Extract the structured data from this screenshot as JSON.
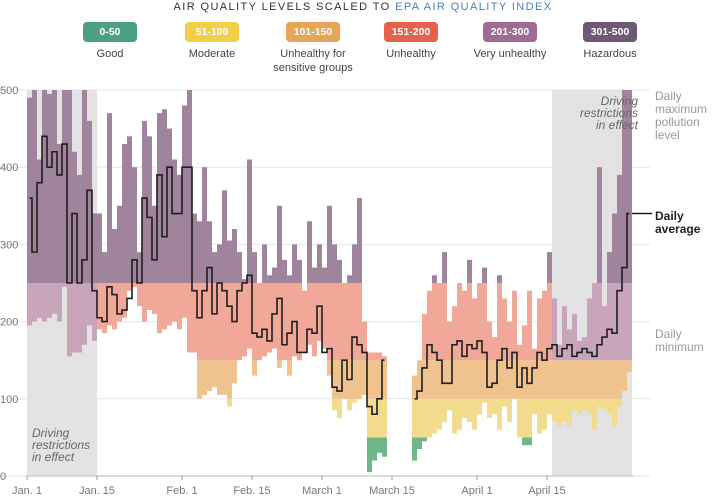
{
  "title_prefix": "AIR QUALITY LEVELS SCALED TO",
  "title_highlight": "EPA AIR QUALITY INDEX",
  "legend": [
    {
      "range": "0-50",
      "label": "Good",
      "color": "#4c9e86"
    },
    {
      "range": "51-100",
      "label": "Moderate",
      "color": "#f1cf48"
    },
    {
      "range": "101-150",
      "label": "Unhealthy for sensitive groups",
      "color": "#e8a558"
    },
    {
      "range": "151-200",
      "label": "Unhealthy",
      "color": "#e2624e"
    },
    {
      "range": "201-300",
      "label": "Very unhealthy",
      "color": "#9e6b92"
    },
    {
      "range": "301-500",
      "label": "Hazardous",
      "color": "#6e5a76"
    }
  ],
  "right_labels": {
    "max_line1": "Daily",
    "max_line2": "maximum",
    "max_line3": "pollution level",
    "avg_line1": "Daily",
    "avg_line2": "average",
    "min_line1": "Daily",
    "min_line2": "minimum"
  },
  "annotations": {
    "left_line1": "Driving",
    "left_line2": "restrictions",
    "left_line3": "in effect",
    "right_line1": "Driving",
    "right_line2": "restrictions",
    "right_line3": "in effect"
  },
  "chart_data": {
    "type": "bar",
    "ylim": [
      0,
      500
    ],
    "yticks": [
      0,
      100,
      200,
      300,
      400,
      500
    ],
    "x_tick_labels": [
      {
        "label": "Jan. 1",
        "day": 0
      },
      {
        "label": "Jan. 15",
        "day": 14
      },
      {
        "label": "Feb. 1",
        "day": 31
      },
      {
        "label": "Feb. 15",
        "day": 45
      },
      {
        "label": "March 1",
        "day": 59
      },
      {
        "label": "March 15",
        "day": 73
      },
      {
        "label": "April 1",
        "day": 90
      },
      {
        "label": "April 15",
        "day": 104
      }
    ],
    "restricted_periods": [
      [
        0,
        13
      ],
      [
        105,
        120
      ]
    ],
    "aqi_bands": [
      {
        "from": 0,
        "to": 50,
        "color": "#6fb68a"
      },
      {
        "from": 50,
        "to": 100,
        "color": "#f3dc8e"
      },
      {
        "from": 100,
        "to": 150,
        "color": "#f0c28e"
      },
      {
        "from": 150,
        "to": 250,
        "color": "#f2a898"
      },
      {
        "from": 250,
        "to": 500,
        "color": "#a0849e"
      }
    ],
    "restricted_band_colors": [
      "#6fb68a",
      "#f3dc8e",
      "#f0c28e",
      "#c8a5bb",
      "#a0849e"
    ],
    "daily": [
      {
        "day": 0,
        "min": 195,
        "max": 490,
        "avg": 360
      },
      {
        "day": 1,
        "min": 200,
        "max": 500,
        "avg": 290
      },
      {
        "day": 2,
        "min": 205,
        "max": 410,
        "avg": 380
      },
      {
        "day": 3,
        "min": 200,
        "max": 500,
        "avg": 440
      },
      {
        "day": 4,
        "min": 205,
        "max": 495,
        "avg": 400
      },
      {
        "day": 5,
        "min": 210,
        "max": 500,
        "avg": 420
      },
      {
        "day": 6,
        "min": 200,
        "max": 430,
        "avg": 390
      },
      {
        "day": 7,
        "min": 245,
        "max": 500,
        "avg": 430
      },
      {
        "day": 8,
        "min": 155,
        "max": 500,
        "avg": 250
      },
      {
        "day": 9,
        "min": 160,
        "max": 420,
        "avg": 340
      },
      {
        "day": 10,
        "min": 160,
        "max": 390,
        "avg": 250
      },
      {
        "day": 11,
        "min": 170,
        "max": 500,
        "avg": 280
      },
      {
        "day": 12,
        "min": 195,
        "max": 460,
        "avg": 370
      },
      {
        "day": 13,
        "min": 175,
        "max": 340,
        "avg": 240
      },
      {
        "day": 14,
        "min": 190,
        "max": 340,
        "avg": 205
      },
      {
        "day": 15,
        "min": 185,
        "max": 290,
        "avg": 200
      },
      {
        "day": 16,
        "min": 195,
        "max": 470,
        "avg": 245
      },
      {
        "day": 17,
        "min": 190,
        "max": 320,
        "avg": 235
      },
      {
        "day": 18,
        "min": 200,
        "max": 350,
        "avg": 210
      },
      {
        "day": 19,
        "min": 205,
        "max": 430,
        "avg": 215
      },
      {
        "day": 20,
        "min": 240,
        "max": 440,
        "avg": 230
      },
      {
        "day": 21,
        "min": 245,
        "max": 400,
        "avg": 280
      },
      {
        "day": 22,
        "min": 220,
        "max": 290,
        "avg": 250
      },
      {
        "day": 23,
        "min": 200,
        "max": 460,
        "avg": 360
      },
      {
        "day": 24,
        "min": 215,
        "max": 440,
        "avg": 335
      },
      {
        "day": 25,
        "min": 210,
        "max": 350,
        "avg": 280
      },
      {
        "day": 26,
        "min": 185,
        "max": 470,
        "avg": 390
      },
      {
        "day": 27,
        "min": 190,
        "max": 475,
        "avg": 310
      },
      {
        "day": 28,
        "min": 195,
        "max": 450,
        "avg": 400
      },
      {
        "day": 29,
        "min": 200,
        "max": 410,
        "avg": 340
      },
      {
        "day": 30,
        "min": 190,
        "max": 390,
        "avg": 340
      },
      {
        "day": 31,
        "min": 205,
        "max": 480,
        "avg": 400
      },
      {
        "day": 32,
        "min": 160,
        "max": 500,
        "avg": 400
      },
      {
        "day": 33,
        "min": 160,
        "max": 340,
        "avg": 240
      },
      {
        "day": 34,
        "min": 100,
        "max": 330,
        "avg": 205
      },
      {
        "day": 35,
        "min": 105,
        "max": 400,
        "avg": 240
      },
      {
        "day": 36,
        "min": 110,
        "max": 330,
        "avg": 270
      },
      {
        "day": 37,
        "min": 115,
        "max": 290,
        "avg": 210
      },
      {
        "day": 38,
        "min": 105,
        "max": 300,
        "avg": 250
      },
      {
        "day": 39,
        "min": 105,
        "max": 370,
        "avg": 240
      },
      {
        "day": 40,
        "min": 90,
        "max": 305,
        "avg": 220
      },
      {
        "day": 41,
        "min": 120,
        "max": 320,
        "avg": 200
      },
      {
        "day": 42,
        "min": 150,
        "max": 290,
        "avg": 240
      },
      {
        "day": 43,
        "min": 155,
        "max": 255,
        "avg": 250
      },
      {
        "day": 44,
        "min": 165,
        "max": 410,
        "avg": 260
      },
      {
        "day": 45,
        "min": 130,
        "max": 290,
        "avg": 185
      },
      {
        "day": 46,
        "min": 150,
        "max": 250,
        "avg": 180
      },
      {
        "day": 47,
        "min": 155,
        "max": 300,
        "avg": 190
      },
      {
        "day": 48,
        "min": 160,
        "max": 260,
        "avg": 175
      },
      {
        "day": 49,
        "min": 165,
        "max": 270,
        "avg": 210
      },
      {
        "day": 50,
        "min": 140,
        "max": 350,
        "avg": 230
      },
      {
        "day": 51,
        "min": 150,
        "max": 280,
        "avg": 170
      },
      {
        "day": 52,
        "min": 130,
        "max": 260,
        "avg": 185
      },
      {
        "day": 53,
        "min": 155,
        "max": 300,
        "avg": 200
      },
      {
        "day": 54,
        "min": 150,
        "max": 280,
        "avg": 160
      },
      {
        "day": 55,
        "min": 160,
        "max": 240,
        "avg": 160
      },
      {
        "day": 56,
        "min": 170,
        "max": 330,
        "avg": 190
      },
      {
        "day": 57,
        "min": 155,
        "max": 270,
        "avg": 185
      },
      {
        "day": 58,
        "min": 175,
        "max": 300,
        "avg": 220
      },
      {
        "day": 59,
        "min": 165,
        "max": 270,
        "avg": 160
      },
      {
        "day": 60,
        "min": 130,
        "max": 350,
        "avg": 165
      },
      {
        "day": 61,
        "min": 85,
        "max": 300,
        "avg": 115
      },
      {
        "day": 62,
        "min": 75,
        "max": 280,
        "avg": 110
      },
      {
        "day": 63,
        "min": 100,
        "max": 250,
        "avg": 150
      },
      {
        "day": 64,
        "min": 85,
        "max": 260,
        "avg": 125
      },
      {
        "day": 65,
        "min": 95,
        "max": 300,
        "avg": 180
      },
      {
        "day": 66,
        "min": 100,
        "max": 360,
        "avg": 170
      },
      {
        "day": 67,
        "min": 105,
        "max": 200,
        "avg": 160
      },
      {
        "day": 68,
        "min": 5,
        "max": 160,
        "avg": 90
      },
      {
        "day": 69,
        "min": 20,
        "max": 160,
        "avg": 80
      },
      {
        "day": 70,
        "min": 30,
        "max": 160,
        "avg": 100
      },
      {
        "day": 71,
        "min": 25,
        "max": 155,
        "avg": 150
      },
      {
        "day": 77,
        "min": 20,
        "max": 130,
        "avg": 100
      },
      {
        "day": 78,
        "min": 35,
        "max": 150,
        "avg": 110
      },
      {
        "day": 79,
        "min": 45,
        "max": 210,
        "avg": 140
      },
      {
        "day": 80,
        "min": 50,
        "max": 240,
        "avg": 170
      },
      {
        "day": 81,
        "min": 55,
        "max": 260,
        "avg": 160
      },
      {
        "day": 82,
        "min": 60,
        "max": 250,
        "avg": 150
      },
      {
        "day": 83,
        "min": 70,
        "max": 290,
        "avg": 120
      },
      {
        "day": 84,
        "min": 85,
        "max": 200,
        "avg": 120
      },
      {
        "day": 85,
        "min": 55,
        "max": 220,
        "avg": 170
      },
      {
        "day": 86,
        "min": 60,
        "max": 250,
        "avg": 175
      },
      {
        "day": 87,
        "min": 75,
        "max": 240,
        "avg": 155
      },
      {
        "day": 88,
        "min": 70,
        "max": 280,
        "avg": 170
      },
      {
        "day": 89,
        "min": 60,
        "max": 230,
        "avg": 165
      },
      {
        "day": 90,
        "min": 80,
        "max": 250,
        "avg": 175
      },
      {
        "day": 91,
        "min": 95,
        "max": 270,
        "avg": 160
      },
      {
        "day": 92,
        "min": 75,
        "max": 200,
        "avg": 115
      },
      {
        "day": 93,
        "min": 80,
        "max": 180,
        "avg": 120
      },
      {
        "day": 94,
        "min": 60,
        "max": 260,
        "avg": 150
      },
      {
        "day": 95,
        "min": 90,
        "max": 230,
        "avg": 165
      },
      {
        "day": 96,
        "min": 70,
        "max": 200,
        "avg": 140
      },
      {
        "day": 97,
        "min": 100,
        "max": 240,
        "avg": 160
      },
      {
        "day": 98,
        "min": 50,
        "max": 170,
        "avg": 115
      },
      {
        "day": 99,
        "min": 40,
        "max": 195,
        "avg": 140
      },
      {
        "day": 100,
        "min": 40,
        "max": 240,
        "avg": 120
      },
      {
        "day": 101,
        "min": 80,
        "max": 165,
        "avg": 140
      },
      {
        "day": 102,
        "min": 55,
        "max": 230,
        "avg": 160
      },
      {
        "day": 103,
        "min": 60,
        "max": 240,
        "avg": 150
      },
      {
        "day": 104,
        "min": 80,
        "max": 290,
        "avg": 165
      },
      {
        "day": 105,
        "min": 70,
        "max": 230,
        "avg": 170
      },
      {
        "day": 106,
        "min": 65,
        "max": 170,
        "avg": 155
      },
      {
        "day": 107,
        "min": 70,
        "max": 220,
        "avg": 165
      },
      {
        "day": 108,
        "min": 65,
        "max": 190,
        "avg": 170
      },
      {
        "day": 109,
        "min": 85,
        "max": 210,
        "avg": 155
      },
      {
        "day": 110,
        "min": 80,
        "max": 175,
        "avg": 160
      },
      {
        "day": 111,
        "min": 85,
        "max": 180,
        "avg": 165
      },
      {
        "day": 112,
        "min": 80,
        "max": 230,
        "avg": 160
      },
      {
        "day": 113,
        "min": 60,
        "max": 250,
        "avg": 155
      },
      {
        "day": 114,
        "min": 90,
        "max": 400,
        "avg": 170
      },
      {
        "day": 115,
        "min": 85,
        "max": 220,
        "avg": 180
      },
      {
        "day": 116,
        "min": 80,
        "max": 290,
        "avg": 190
      },
      {
        "day": 117,
        "min": 65,
        "max": 340,
        "avg": 185
      },
      {
        "day": 118,
        "min": 90,
        "max": 390,
        "avg": 240
      },
      {
        "day": 119,
        "min": 110,
        "max": 500,
        "avg": 270
      },
      {
        "day": 120,
        "min": 135,
        "max": 500,
        "avg": 340
      }
    ]
  }
}
